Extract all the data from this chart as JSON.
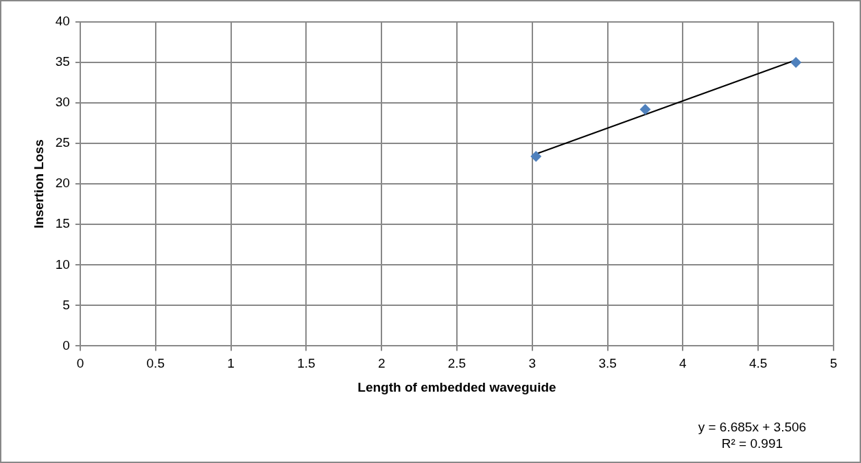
{
  "chart_data": {
    "type": "scatter",
    "xlabel": "Length of embedded waveguide",
    "ylabel": "Insertion Loss",
    "series": [
      {
        "type": "scatter",
        "color": "#4f81bd",
        "marker": "diamond",
        "x": [
          3.025,
          3.75,
          4.75
        ],
        "values": [
          23.4,
          29.2,
          35
        ]
      },
      {
        "type": "line",
        "color": "#000000",
        "marker": "none",
        "x": [
          3.025,
          4.75
        ],
        "values": [
          23.7,
          35.3
        ]
      }
    ],
    "xlim": [
      0,
      5
    ],
    "xticks": [
      0,
      0.5,
      1,
      1.5,
      2,
      2.5,
      3,
      3.5,
      4,
      4.5,
      5
    ],
    "ylim": [
      0,
      40
    ],
    "yticks": [
      0,
      5,
      10,
      15,
      20,
      25,
      30,
      35,
      40
    ],
    "grid": true,
    "legend": false,
    "annotations": [
      "y = 6.685x + 3.506",
      "R² = 0.991"
    ]
  }
}
